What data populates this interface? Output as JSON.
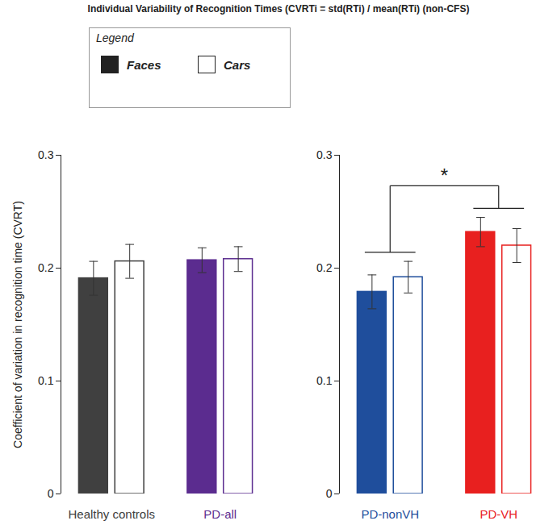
{
  "chart_data": [
    {
      "type": "bar",
      "title": "Individual Variability of Recognition Times (CVRTi = std(RTi) / mean(RTi) (non-CFS)",
      "legend": "top-left",
      "legend_title": "Legend",
      "y_label": "Coefficient of variation in recognition time (CVRT)",
      "categories": [
        "Healthy controls",
        "PD-all"
      ],
      "series": [
        {
          "name": "Faces",
          "color": "#222222",
          "colors": [
            "#404040",
            "#5b2c8f"
          ],
          "values": [
            0.191,
            0.207
          ],
          "errors": [
            0.015,
            0.011
          ]
        },
        {
          "name": "Cars",
          "color": "#ffffff",
          "colors": [
            "#404040",
            "#5b2c8f"
          ],
          "values": [
            0.206,
            0.208
          ],
          "errors": [
            0.015,
            0.011
          ]
        }
      ],
      "ylim": [
        0,
        0.3
      ],
      "yticks": [
        0,
        0.1,
        0.2,
        0.3
      ]
    },
    {
      "type": "bar",
      "categories": [
        "PD-nonVH",
        "PD-VH"
      ],
      "series": [
        {
          "name": "Faces",
          "color": "#222222",
          "colors": [
            "#1f4e9c",
            "#e8201f"
          ],
          "values": [
            0.179,
            0.232
          ],
          "errors": [
            0.015,
            0.013
          ]
        },
        {
          "name": "Cars",
          "color": "#ffffff",
          "colors": [
            "#1f4e9c",
            "#e8201f"
          ],
          "values": [
            0.192,
            0.22
          ],
          "errors": [
            0.014,
            0.015
          ]
        }
      ],
      "ylim": [
        0,
        0.3
      ],
      "yticks": [
        0,
        0.1,
        0.2,
        0.3
      ],
      "annotations": [
        {
          "text": "*",
          "groups": [
            "PD-nonVH",
            "PD-VH"
          ]
        }
      ]
    }
  ]
}
